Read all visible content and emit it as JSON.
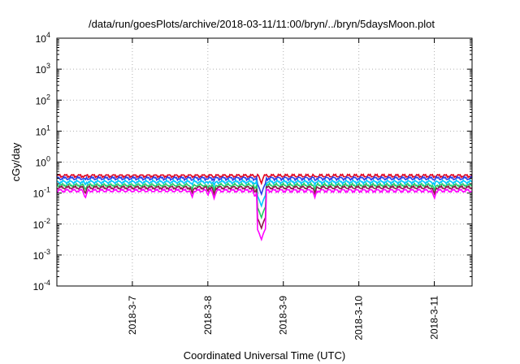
{
  "chart_data": {
    "type": "line",
    "title": "/data/run/goesPlots/archive/2018-03-11/11:00/bryn/../bryn/5daysMoon.plot",
    "xlabel": "Coordinated Universal Time (UTC)",
    "ylabel": "cGy/day",
    "yscale": "log",
    "ylim_exponent": [
      -4,
      4
    ],
    "y_ticks": [
      {
        "base": "10",
        "exp": "-4"
      },
      {
        "base": "10",
        "exp": "-3"
      },
      {
        "base": "10",
        "exp": "-2"
      },
      {
        "base": "10",
        "exp": "-1"
      },
      {
        "base": "10",
        "exp": "0"
      },
      {
        "base": "10",
        "exp": "1"
      },
      {
        "base": "10",
        "exp": "2"
      },
      {
        "base": "10",
        "exp": "3"
      },
      {
        "base": "10",
        "exp": "4"
      }
    ],
    "xlim": [
      "2018-03-06 00:00",
      "2018-03-11 12:00"
    ],
    "x_ticks": [
      "2018-3-7",
      "2018-3-8",
      "2018-3-9",
      "2018-3-10",
      "2018-3-11"
    ],
    "grid": "on",
    "legend": "none",
    "series": [
      {
        "color": "#e0001c",
        "baseline": 0.36
      },
      {
        "color": "#2a3fe8",
        "baseline": 0.3
      },
      {
        "color": "#00c8ff",
        "baseline": 0.23
      },
      {
        "color": "#22cc66",
        "baseline": 0.18
      },
      {
        "color": "#8b1a4a",
        "baseline": 0.15
      },
      {
        "color": "#ff00ff",
        "baseline": 0.12
      }
    ],
    "dips": [
      {
        "date": "2018-03-06 09:00",
        "value": 0.065
      },
      {
        "date": "2018-03-07 19:00",
        "value": 0.07
      },
      {
        "date": "2018-03-08 00:00",
        "value": 0.08
      },
      {
        "date": "2018-03-08 02:00",
        "value": 0.065
      },
      {
        "date": "2018-03-08 15:00",
        "value": 0.07
      },
      {
        "date": "2018-03-08 17:00",
        "value": 0.003
      },
      {
        "date": "2018-03-09 10:00",
        "value": 0.07
      },
      {
        "date": "2018-03-11 00:00",
        "value": 0.065
      }
    ]
  }
}
